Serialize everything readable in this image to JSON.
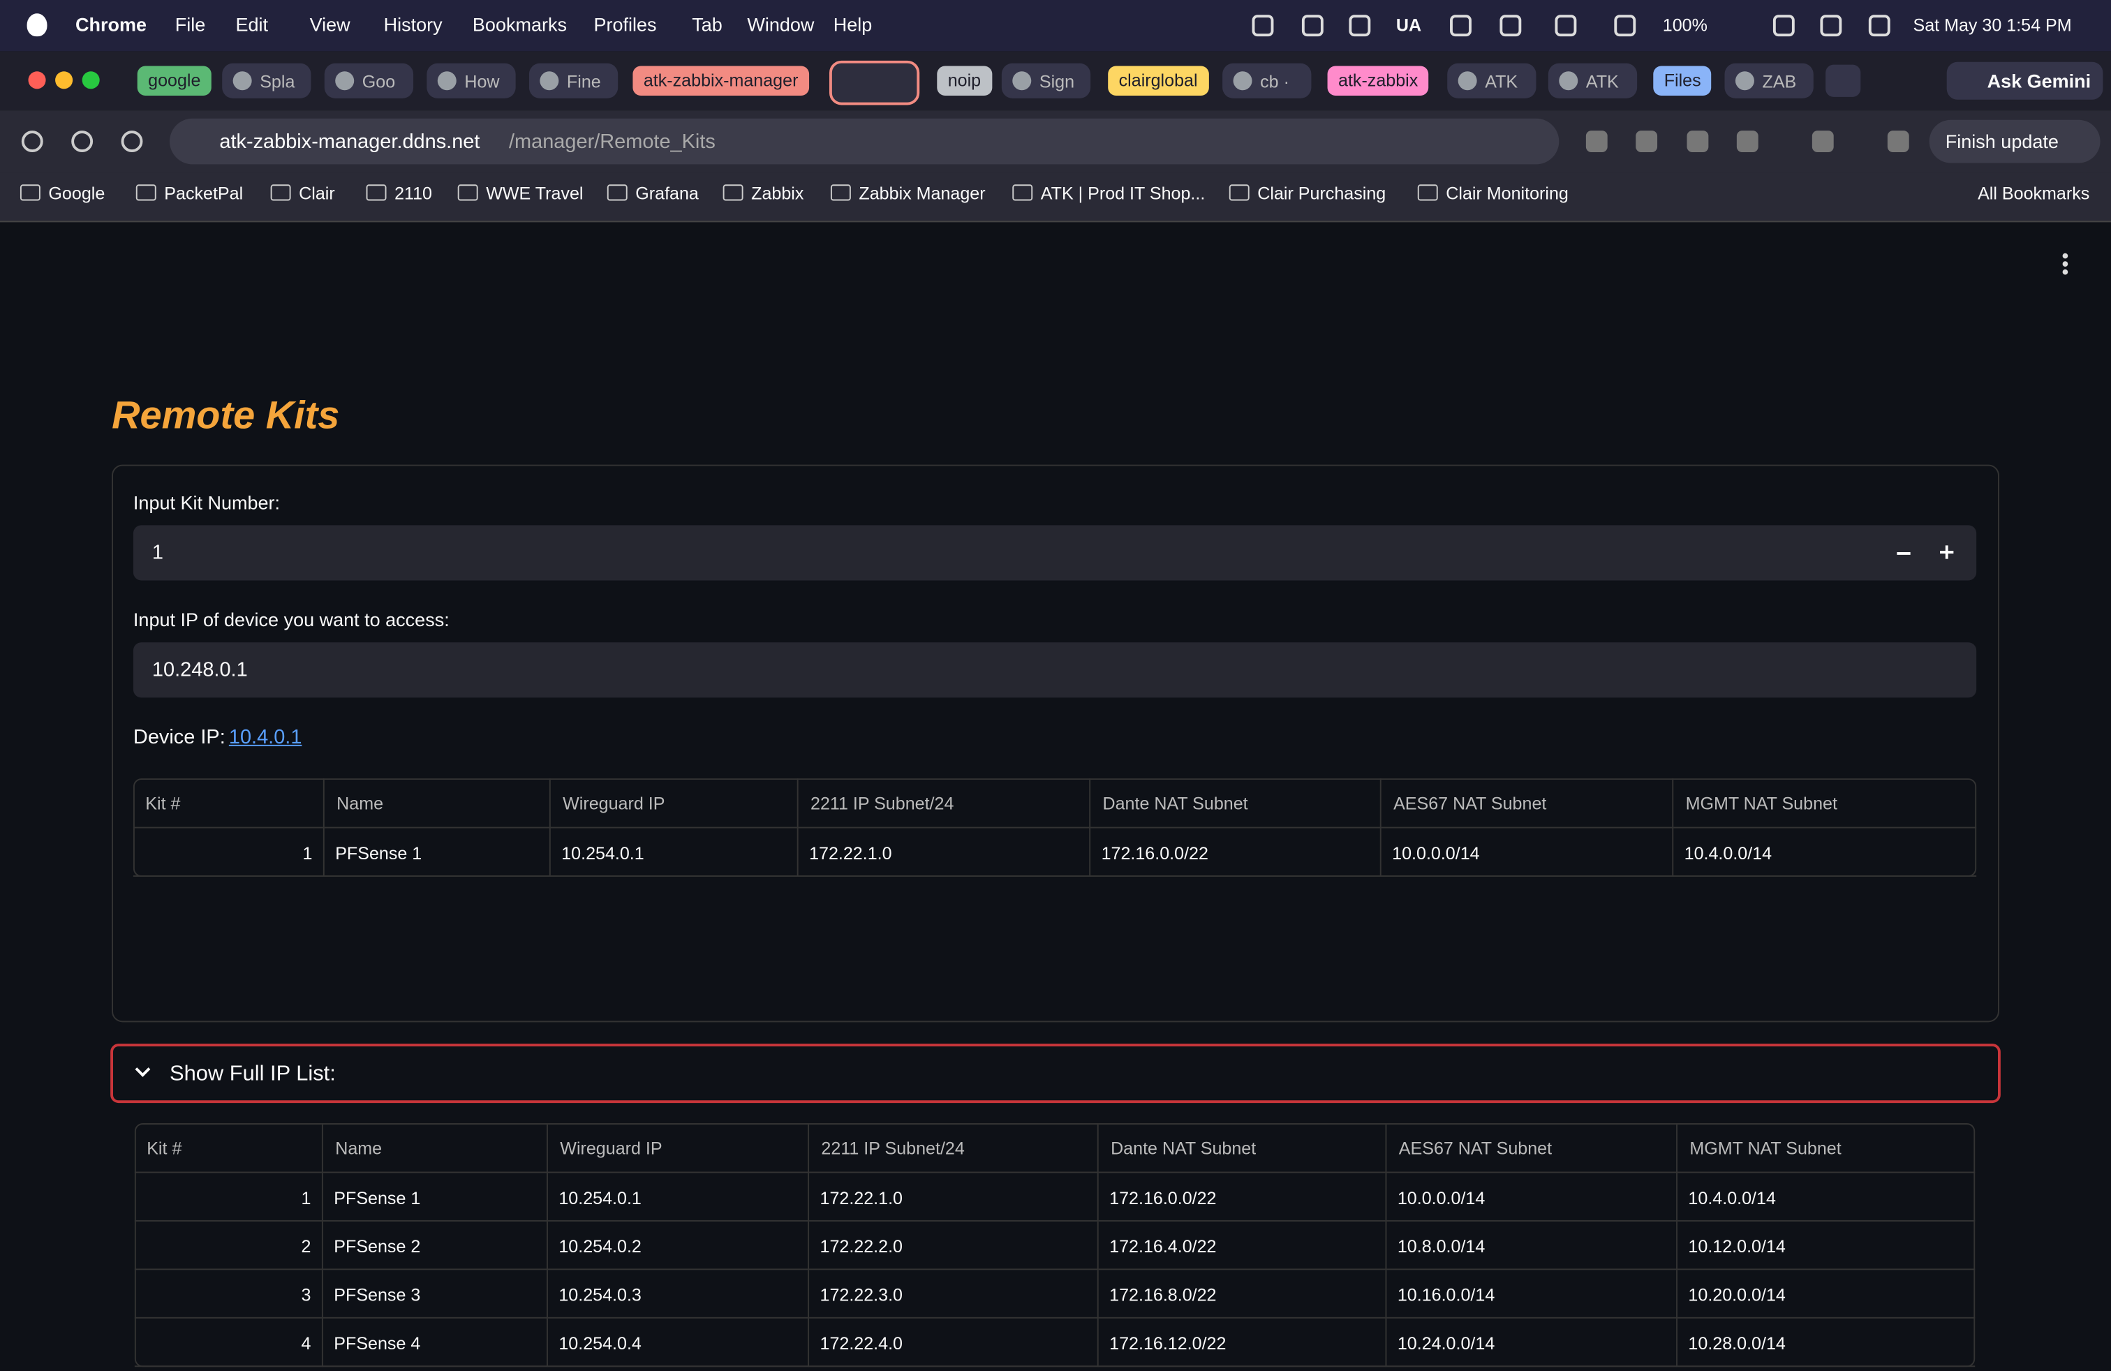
{
  "menubar": {
    "app": "Chrome",
    "items": [
      "File",
      "Edit",
      "View",
      "History",
      "Bookmarks",
      "Profiles",
      "Tab",
      "Window",
      "Help"
    ],
    "status": [
      "UA",
      "100%",
      "Sat May 30  1:54 PM"
    ]
  },
  "tabs": [
    {
      "label": "google",
      "group": "#5bb974"
    },
    {
      "label": "Spla"
    },
    {
      "label": "Goo"
    },
    {
      "label": "How"
    },
    {
      "label": "Fine"
    },
    {
      "label": "atk-zabbix-manager",
      "group": "#f28b82"
    },
    {
      "label": "noip",
      "group": "#bdc1c6"
    },
    {
      "label": "Sign"
    },
    {
      "label": "clairglobal",
      "group": "#fdd663"
    },
    {
      "label": "cb ·"
    },
    {
      "label": "atk-zabbix",
      "group": "#ff8bcb"
    },
    {
      "label": "ATK"
    },
    {
      "label": "ATK"
    },
    {
      "label": "Files",
      "group": "#8ab4f8"
    },
    {
      "label": "ZAB"
    }
  ],
  "ask_gemini": "Ask Gemini",
  "address": {
    "host": "atk-zabbix-manager.ddns.net",
    "path": "/manager/Remote_Kits"
  },
  "finish_update": "Finish update",
  "bookmarks": [
    "Google",
    "PacketPal",
    "Clair",
    "2110",
    "WWE Travel",
    "Grafana",
    "Zabbix",
    "Zabbix Manager",
    "ATK | Prod IT Shop...",
    "Clair Purchasing",
    "Clair Monitoring"
  ],
  "all_bookmarks": "All Bookmarks",
  "page": {
    "title": "Remote Kits",
    "kit_label": "Input Kit Number:",
    "kit_value": "1",
    "ip_label": "Input IP of device you want to access:",
    "ip_value": "10.248.0.1",
    "device_ip_label": "Device IP:",
    "device_ip_link": "10.4.0.1",
    "expander": "Show Full IP List:"
  },
  "columns": [
    "Kit #",
    "Name",
    "Wireguard IP",
    "2211 IP Subnet/24",
    "Dante NAT Subnet",
    "AES67 NAT Subnet",
    "MGMT NAT Subnet"
  ],
  "table1": {
    "rows": [
      [
        1,
        "PFSense 1",
        "10.254.0.1",
        "172.22.1.0",
        "172.16.0.0/22",
        "10.0.0.0/14",
        "10.4.0.0/14"
      ]
    ]
  },
  "table2": {
    "rows": [
      [
        1,
        "PFSense 1",
        "10.254.0.1",
        "172.22.1.0",
        "172.16.0.0/22",
        "10.0.0.0/14",
        "10.4.0.0/14"
      ],
      [
        2,
        "PFSense 2",
        "10.254.0.2",
        "172.22.2.0",
        "172.16.4.0/22",
        "10.8.0.0/14",
        "10.12.0.0/14"
      ],
      [
        3,
        "PFSense 3",
        "10.254.0.3",
        "172.22.3.0",
        "172.16.8.0/22",
        "10.16.0.0/14",
        "10.20.0.0/14"
      ],
      [
        4,
        "PFSense 4",
        "10.254.0.4",
        "172.22.4.0",
        "172.16.12.0/22",
        "10.24.0.0/14",
        "10.28.0.0/14"
      ]
    ]
  }
}
